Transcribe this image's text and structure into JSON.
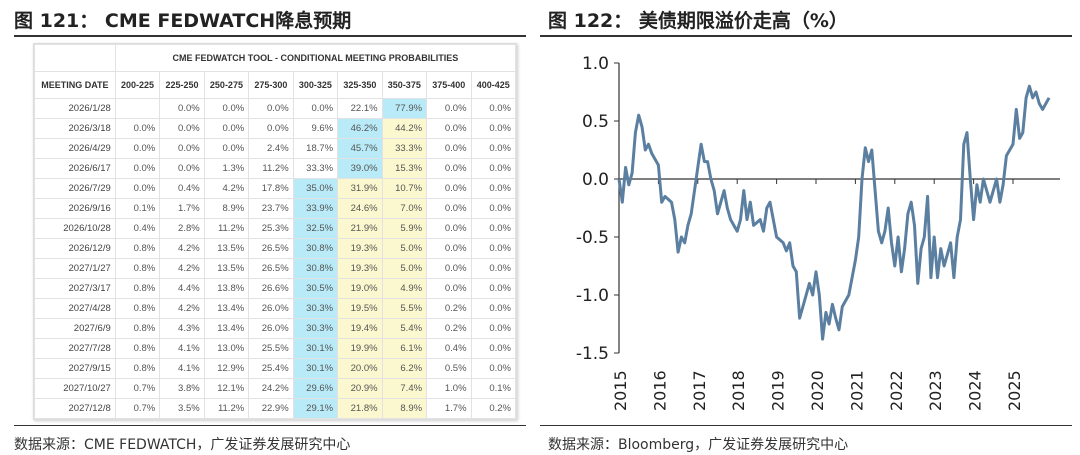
{
  "left": {
    "title": "图 121： CME FEDWATCH降息预期",
    "source": "数据来源：CME FEDWATCH，广发证券发展研究中心",
    "table": {
      "caption": "CME FEDWATCH TOOL - CONDITIONAL MEETING PROBABILITIES",
      "columns": [
        "MEETING DATE",
        "200-225",
        "225-250",
        "250-275",
        "275-300",
        "300-325",
        "325-350",
        "350-375",
        "375-400",
        "400-425"
      ],
      "rows": [
        [
          "2026/1/28",
          "",
          "0.0%",
          "0.0%",
          "0.0%",
          "0.0%",
          "22.1%",
          "77.9%",
          "0.0%",
          "0.0%"
        ],
        [
          "2026/3/18",
          "0.0%",
          "0.0%",
          "0.0%",
          "0.0%",
          "9.6%",
          "46.2%",
          "44.2%",
          "0.0%",
          "0.0%"
        ],
        [
          "2026/4/29",
          "0.0%",
          "0.0%",
          "0.0%",
          "2.4%",
          "18.7%",
          "45.7%",
          "33.3%",
          "0.0%",
          "0.0%"
        ],
        [
          "2026/6/17",
          "0.0%",
          "0.0%",
          "1.3%",
          "11.2%",
          "33.3%",
          "39.0%",
          "15.3%",
          "0.0%",
          "0.0%"
        ],
        [
          "2026/7/29",
          "0.0%",
          "0.4%",
          "4.2%",
          "17.8%",
          "35.0%",
          "31.9%",
          "10.7%",
          "0.0%",
          "0.0%"
        ],
        [
          "2026/9/16",
          "0.1%",
          "1.7%",
          "8.9%",
          "23.7%",
          "33.9%",
          "24.6%",
          "7.0%",
          "0.0%",
          "0.0%"
        ],
        [
          "2026/10/28",
          "0.4%",
          "2.8%",
          "11.2%",
          "25.3%",
          "32.5%",
          "21.9%",
          "5.9%",
          "0.0%",
          "0.0%"
        ],
        [
          "2026/12/9",
          "0.8%",
          "4.2%",
          "13.5%",
          "26.5%",
          "30.8%",
          "19.3%",
          "5.0%",
          "0.0%",
          "0.0%"
        ],
        [
          "2027/1/27",
          "0.8%",
          "4.2%",
          "13.5%",
          "26.5%",
          "30.8%",
          "19.3%",
          "5.0%",
          "0.0%",
          "0.0%"
        ],
        [
          "2027/3/17",
          "0.8%",
          "4.4%",
          "13.8%",
          "26.6%",
          "30.5%",
          "19.0%",
          "4.9%",
          "0.0%",
          "0.0%"
        ],
        [
          "2027/4/28",
          "0.8%",
          "4.2%",
          "13.4%",
          "26.0%",
          "30.3%",
          "19.5%",
          "5.5%",
          "0.2%",
          "0.0%"
        ],
        [
          "2027/6/9",
          "0.8%",
          "4.3%",
          "13.4%",
          "26.0%",
          "30.3%",
          "19.4%",
          "5.4%",
          "0.2%",
          "0.0%"
        ],
        [
          "2027/7/28",
          "0.8%",
          "4.1%",
          "13.0%",
          "25.5%",
          "30.1%",
          "19.9%",
          "6.1%",
          "0.4%",
          "0.0%"
        ],
        [
          "2027/9/15",
          "0.8%",
          "4.1%",
          "12.9%",
          "25.4%",
          "30.1%",
          "20.0%",
          "6.2%",
          "0.5%",
          "0.0%"
        ],
        [
          "2027/10/27",
          "0.7%",
          "3.8%",
          "12.1%",
          "24.2%",
          "29.6%",
          "20.9%",
          "7.4%",
          "1.0%",
          "0.1%"
        ],
        [
          "2027/12/8",
          "0.7%",
          "3.5%",
          "11.2%",
          "22.9%",
          "29.1%",
          "21.8%",
          "8.9%",
          "1.7%",
          "0.2%"
        ]
      ],
      "highlights": {
        "blue": [
          [
            0,
            7
          ],
          [
            1,
            6
          ],
          [
            2,
            6
          ],
          [
            3,
            6
          ],
          [
            4,
            5
          ],
          [
            5,
            5
          ],
          [
            6,
            5
          ],
          [
            7,
            5
          ],
          [
            8,
            5
          ],
          [
            9,
            5
          ],
          [
            10,
            5
          ],
          [
            11,
            5
          ],
          [
            12,
            5
          ],
          [
            13,
            5
          ],
          [
            14,
            5
          ],
          [
            15,
            5
          ]
        ],
        "yellow": [
          [
            1,
            7
          ],
          [
            2,
            7
          ],
          [
            3,
            7
          ],
          [
            4,
            6
          ],
          [
            4,
            7
          ],
          [
            5,
            6
          ],
          [
            5,
            7
          ],
          [
            6,
            6
          ],
          [
            6,
            7
          ],
          [
            7,
            6
          ],
          [
            7,
            7
          ],
          [
            8,
            6
          ],
          [
            8,
            7
          ],
          [
            9,
            6
          ],
          [
            9,
            7
          ],
          [
            10,
            6
          ],
          [
            10,
            7
          ],
          [
            11,
            6
          ],
          [
            11,
            7
          ],
          [
            12,
            6
          ],
          [
            12,
            7
          ],
          [
            13,
            6
          ],
          [
            13,
            7
          ],
          [
            14,
            6
          ],
          [
            14,
            7
          ],
          [
            15,
            6
          ],
          [
            15,
            7
          ]
        ]
      },
      "colors": {
        "blue": "#b8eaf7",
        "yellow": "#fbf8cf"
      }
    }
  },
  "right": {
    "title": "图 122： 美债期限溢价走高（%）",
    "source": "数据来源：Bloomberg，广发证券发展研究中心"
  },
  "chart_data": {
    "type": "line",
    "ylim": [
      -1.5,
      1.0
    ],
    "yticks": [
      "1.0",
      "0.5",
      "0.0",
      "-0.5",
      "-1.0",
      "-1.5"
    ],
    "xticks": [
      "2015",
      "2016",
      "2017",
      "2018",
      "2019",
      "2020",
      "2021",
      "2022",
      "2023",
      "2024",
      "2025"
    ],
    "color": "#5b7fa0",
    "points": [
      [
        "2015-01",
        0.0
      ],
      [
        "2015-02",
        -0.2
      ],
      [
        "2015-03",
        0.1
      ],
      [
        "2015-04",
        -0.05
      ],
      [
        "2015-05",
        0.05
      ],
      [
        "2015-06",
        0.4
      ],
      [
        "2015-07",
        0.55
      ],
      [
        "2015-08",
        0.45
      ],
      [
        "2015-09",
        0.25
      ],
      [
        "2015-10",
        0.3
      ],
      [
        "2015-11",
        0.22
      ],
      [
        "2016-01",
        0.12
      ],
      [
        "2016-02",
        -0.2
      ],
      [
        "2016-03",
        -0.15
      ],
      [
        "2016-05",
        -0.2
      ],
      [
        "2016-06",
        -0.35
      ],
      [
        "2016-07",
        -0.63
      ],
      [
        "2016-08",
        -0.5
      ],
      [
        "2016-09",
        -0.55
      ],
      [
        "2016-10",
        -0.4
      ],
      [
        "2016-11",
        -0.3
      ],
      [
        "2017-01",
        0.1
      ],
      [
        "2017-02",
        0.3
      ],
      [
        "2017-03",
        0.15
      ],
      [
        "2017-04",
        0.15
      ],
      [
        "2017-05",
        0.0
      ],
      [
        "2017-06",
        -0.1
      ],
      [
        "2017-07",
        -0.3
      ],
      [
        "2017-09",
        -0.1
      ],
      [
        "2017-10",
        -0.25
      ],
      [
        "2017-11",
        -0.35
      ],
      [
        "2018-01",
        -0.45
      ],
      [
        "2018-02",
        -0.35
      ],
      [
        "2018-03",
        -0.1
      ],
      [
        "2018-04",
        -0.35
      ],
      [
        "2018-05",
        -0.2
      ],
      [
        "2018-06",
        -0.4
      ],
      [
        "2018-08",
        -0.35
      ],
      [
        "2018-09",
        -0.45
      ],
      [
        "2018-10",
        -0.25
      ],
      [
        "2018-11",
        -0.2
      ],
      [
        "2019-01",
        -0.5
      ],
      [
        "2019-03",
        -0.55
      ],
      [
        "2019-04",
        -0.62
      ],
      [
        "2019-05",
        -0.55
      ],
      [
        "2019-06",
        -0.75
      ],
      [
        "2019-07",
        -0.8
      ],
      [
        "2019-08",
        -1.2
      ],
      [
        "2019-09",
        -1.1
      ],
      [
        "2019-11",
        -0.9
      ],
      [
        "2019-12",
        -1.0
      ],
      [
        "2020-01",
        -0.8
      ],
      [
        "2020-02",
        -1.0
      ],
      [
        "2020-03",
        -1.38
      ],
      [
        "2020-04",
        -1.15
      ],
      [
        "2020-05",
        -1.25
      ],
      [
        "2020-06",
        -1.08
      ],
      [
        "2020-07",
        -1.2
      ],
      [
        "2020-08",
        -1.3
      ],
      [
        "2020-09",
        -1.1
      ],
      [
        "2020-11",
        -1.0
      ],
      [
        "2020-12",
        -0.85
      ],
      [
        "2021-01",
        -0.7
      ],
      [
        "2021-02",
        -0.5
      ],
      [
        "2021-03",
        0.0
      ],
      [
        "2021-04",
        0.27
      ],
      [
        "2021-05",
        0.15
      ],
      [
        "2021-06",
        0.25
      ],
      [
        "2021-07",
        -0.1
      ],
      [
        "2021-08",
        -0.45
      ],
      [
        "2021-09",
        -0.55
      ],
      [
        "2021-10",
        -0.45
      ],
      [
        "2021-11",
        -0.25
      ],
      [
        "2021-12",
        -0.55
      ],
      [
        "2022-01",
        -0.75
      ],
      [
        "2022-02",
        -0.5
      ],
      [
        "2022-03",
        -0.8
      ],
      [
        "2022-04",
        -0.6
      ],
      [
        "2022-05",
        -0.3
      ],
      [
        "2022-06",
        -0.2
      ],
      [
        "2022-07",
        -0.4
      ],
      [
        "2022-08",
        -0.9
      ],
      [
        "2022-09",
        -0.6
      ],
      [
        "2022-10",
        -0.5
      ],
      [
        "2022-11",
        -0.15
      ],
      [
        "2022-12",
        -0.85
      ],
      [
        "2023-01",
        -0.5
      ],
      [
        "2023-02",
        -0.85
      ],
      [
        "2023-03",
        -0.6
      ],
      [
        "2023-04",
        -0.75
      ],
      [
        "2023-06",
        -0.55
      ],
      [
        "2023-07",
        -0.85
      ],
      [
        "2023-08",
        -0.5
      ],
      [
        "2023-09",
        -0.35
      ],
      [
        "2023-10",
        0.3
      ],
      [
        "2023-11",
        0.4
      ],
      [
        "2023-12",
        0.0
      ],
      [
        "2024-01",
        -0.35
      ],
      [
        "2024-02",
        -0.05
      ],
      [
        "2024-03",
        -0.2
      ],
      [
        "2024-04",
        0.0
      ],
      [
        "2024-05",
        -0.1
      ],
      [
        "2024-06",
        -0.2
      ],
      [
        "2024-08",
        0.0
      ],
      [
        "2024-09",
        -0.2
      ],
      [
        "2024-10",
        -0.05
      ],
      [
        "2024-11",
        0.2
      ],
      [
        "2025-01",
        0.3
      ],
      [
        "2025-02",
        0.6
      ],
      [
        "2025-03",
        0.35
      ],
      [
        "2025-04",
        0.4
      ],
      [
        "2025-05",
        0.7
      ],
      [
        "2025-06",
        0.8
      ],
      [
        "2025-07",
        0.7
      ],
      [
        "2025-08",
        0.75
      ],
      [
        "2025-09",
        0.65
      ],
      [
        "2025-10",
        0.6
      ],
      [
        "2025-12",
        0.7
      ]
    ]
  }
}
